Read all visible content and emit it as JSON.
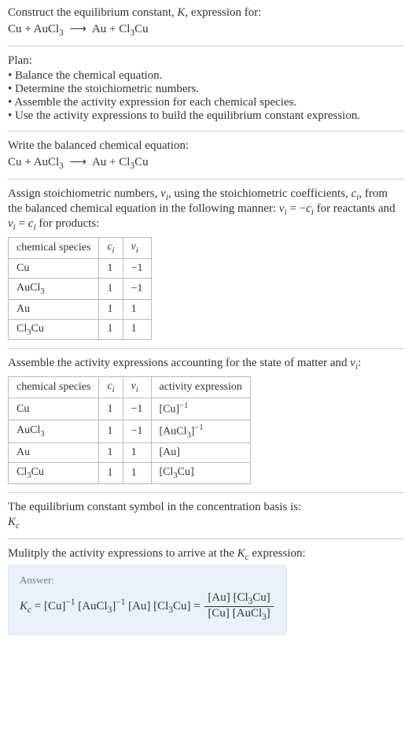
{
  "intro": {
    "line1": "Construct the equilibrium constant, <span class=\"ital\">K</span>, expression for:",
    "equation": "Cu + AuCl<sub>3</sub> <span class=\"arrow\">⟶</span> Au + Cl<sub>3</sub>Cu"
  },
  "plan": {
    "title": "Plan:",
    "items": [
      "Balance the chemical equation.",
      "Determine the stoichiometric numbers.",
      "Assemble the activity expression for each chemical species.",
      "Use the activity expressions to build the equilibrium constant expression."
    ]
  },
  "balanced": {
    "line": "Write the balanced chemical equation:",
    "equation": "Cu + AuCl<sub>3</sub> <span class=\"arrow\">⟶</span> Au + Cl<sub>3</sub>Cu"
  },
  "stoich": {
    "intro": "Assign stoichiometric numbers, <span class=\"ital\">ν<sub>i</sub></span>, using the stoichiometric coefficients, <span class=\"ital\">c<sub>i</sub></span>, from the balanced chemical equation in the following manner: <span class=\"ital\">ν<sub>i</sub></span> = −<span class=\"ital\">c<sub>i</sub></span> for reactants and <span class=\"ital\">ν<sub>i</sub></span> = <span class=\"ital\">c<sub>i</sub></span> for products:",
    "headers": [
      "chemical species",
      "<span class=\"ital\">c<sub>i</sub></span>",
      "<span class=\"ital\">ν<sub>i</sub></span>"
    ],
    "rows": [
      [
        "Cu",
        "1",
        "−1"
      ],
      [
        "AuCl<sub>3</sub>",
        "1",
        "−1"
      ],
      [
        "Au",
        "1",
        "1"
      ],
      [
        "Cl<sub>3</sub>Cu",
        "1",
        "1"
      ]
    ]
  },
  "activity": {
    "intro": "Assemble the activity expressions accounting for the state of matter and <span class=\"ital\">ν<sub>i</sub></span>:",
    "headers": [
      "chemical species",
      "<span class=\"ital\">c<sub>i</sub></span>",
      "<span class=\"ital\">ν<sub>i</sub></span>",
      "activity expression"
    ],
    "rows": [
      [
        "Cu",
        "1",
        "−1",
        "[Cu]<sup>−1</sup>"
      ],
      [
        "AuCl<sub>3</sub>",
        "1",
        "−1",
        "[AuCl<sub>3</sub>]<sup>−1</sup>"
      ],
      [
        "Au",
        "1",
        "1",
        "[Au]"
      ],
      [
        "Cl<sub>3</sub>Cu",
        "1",
        "1",
        "[Cl<sub>3</sub>Cu]"
      ]
    ]
  },
  "kc_symbol": {
    "line": "The equilibrium constant symbol in the concentration basis is:",
    "sym": "<span class=\"ital\">K<sub>c</sub></span>"
  },
  "multiply_line": "Mulitply the activity expressions to arrive at the <span class=\"ital\">K<sub>c</sub></span> expression:",
  "answer": {
    "label": "Answer:",
    "lhs": "<span class=\"ital\">K<sub>c</sub></span> = [Cu]<sup>−1</sup> [AuCl<sub>3</sub>]<sup>−1</sup> [Au] [Cl<sub>3</sub>Cu] = ",
    "frac_num": "[Au] [Cl<sub>3</sub>Cu]",
    "frac_den": "[Cu] [AuCl<sub>3</sub>]"
  },
  "style": {
    "table_border": "#bbb",
    "answer_bg": "#e9f2fb"
  }
}
